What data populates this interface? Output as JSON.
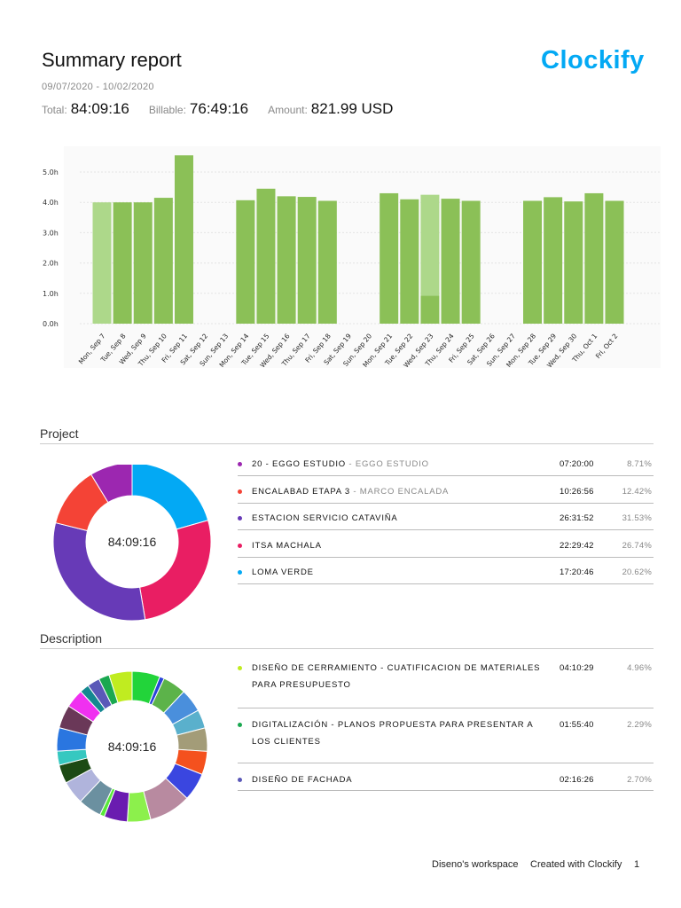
{
  "header": {
    "title": "Summary report",
    "logo": "Clockify",
    "date_range": "09/07/2020 - 10/02/2020",
    "total_label": "Total:",
    "total_value": "84:09:16",
    "billable_label": "Billable:",
    "billable_value": "76:49:16",
    "amount_label": "Amount:",
    "amount_value": "821.99 USD",
    "brand_color": "#03a9f4"
  },
  "chart_data": [
    {
      "type": "bar",
      "stacked": true,
      "categories": [
        "Mon, Sep 7",
        "Tue, Sep 8",
        "Wed, Sep 9",
        "Thu, Sep 10",
        "Fri, Sep 11",
        "Sat, Sep 12",
        "Sun, Sep 13",
        "Mon, Sep 14",
        "Tue, Sep 15",
        "Wed, Sep 16",
        "Thu, Sep 17",
        "Fri, Sep 18",
        "Sat, Sep 19",
        "Sun, Sep 20",
        "Mon, Sep 21",
        "Tue, Sep 22",
        "Wed, Sep 23",
        "Thu, Sep 24",
        "Fri, Sep 25",
        "Sat, Sep 26",
        "Sun, Sep 27",
        "Mon, Sep 28",
        "Tue, Sep 29",
        "Wed, Sep 30",
        "Thu, Oct 1",
        "Fri, Oct 2"
      ],
      "series": [
        {
          "color": "#8bc057",
          "values": [
            0,
            4.0,
            4.0,
            4.15,
            5.55,
            0,
            0,
            4.07,
            4.45,
            4.2,
            4.18,
            4.05,
            0,
            0,
            4.3,
            4.1,
            0.92,
            4.12,
            4.05,
            0,
            0,
            4.05,
            4.17,
            4.03,
            4.3,
            4.05
          ]
        },
        {
          "color": "#add88a",
          "values": [
            4.0,
            0,
            0,
            0,
            0,
            0,
            0,
            0,
            0,
            0,
            0,
            0,
            0,
            0,
            0,
            0,
            3.33,
            0,
            0,
            0,
            0,
            0,
            0,
            0,
            0,
            0
          ]
        }
      ],
      "yticks": [
        "0.0h",
        "1.0h",
        "2.0h",
        "3.0h",
        "4.0h",
        "5.0h"
      ],
      "ylim": [
        0,
        5.7
      ],
      "grid": true
    },
    {
      "type": "pie",
      "center_label": "84:09:16",
      "slices": [
        {
          "label": "LOMA VERDE",
          "value": 20.62,
          "color": "#03a9f4"
        },
        {
          "label": "ITSA MACHALA",
          "value": 26.74,
          "color": "#e91e63"
        },
        {
          "label": "ESTACION SERVICIO CATAVIÑA",
          "value": 31.53,
          "color": "#673ab7"
        },
        {
          "label": "ENCALABAD ETAPA 3",
          "value": 12.42,
          "color": "#f44336"
        },
        {
          "label": "20 - EGGO ESTUDIO",
          "value": 8.71,
          "color": "#9c27b0"
        }
      ]
    },
    {
      "type": "pie",
      "center_label": "84:09:16",
      "slices": [
        {
          "value": 6,
          "color": "#22d43a"
        },
        {
          "value": 1,
          "color": "#2a44d8"
        },
        {
          "value": 5,
          "color": "#5cb34a"
        },
        {
          "value": 5,
          "color": "#4a8fdc"
        },
        {
          "value": 4,
          "color": "#5ab0cc"
        },
        {
          "value": 5,
          "color": "#a39c78"
        },
        {
          "value": 5,
          "color": "#f4511e"
        },
        {
          "value": 6,
          "color": "#3a46e0"
        },
        {
          "value": 9,
          "color": "#b88aa0"
        },
        {
          "value": 5,
          "color": "#8cf04c"
        },
        {
          "value": 5,
          "color": "#6a1cb0"
        },
        {
          "value": 1,
          "color": "#58e83a"
        },
        {
          "value": 5,
          "color": "#6b90a0"
        },
        {
          "value": 5,
          "color": "#b0b4dc"
        },
        {
          "value": 4,
          "color": "#1c4a14"
        },
        {
          "value": 3,
          "color": "#36c8c0"
        },
        {
          "value": 5,
          "color": "#2a76e0"
        },
        {
          "value": 5,
          "color": "#6a3858"
        },
        {
          "value": 4,
          "color": "#f030f0"
        },
        {
          "value": 2,
          "color": "#148890"
        },
        {
          "value": 2.7,
          "color": "#5a58b8"
        },
        {
          "value": 2.29,
          "color": "#1aa850"
        },
        {
          "value": 4.96,
          "color": "#c0ec20"
        }
      ]
    }
  ],
  "project": {
    "heading": "Project",
    "items": [
      {
        "name": "20 - EGGO ESTUDIO",
        "client": " - EGGO ESTUDIO",
        "time": "07:20:00",
        "pct": "8.71%",
        "color": "#9c27b0"
      },
      {
        "name": "ENCALABAD ETAPA 3",
        "client": " - MARCO ENCALADA",
        "time": "10:26:56",
        "pct": "12.42%",
        "color": "#f44336"
      },
      {
        "name": "ESTACION SERVICIO CATAVIÑA",
        "client": "",
        "time": "26:31:52",
        "pct": "31.53%",
        "color": "#673ab7"
      },
      {
        "name": "ITSA MACHALA",
        "client": "",
        "time": "22:29:42",
        "pct": "26.74%",
        "color": "#e91e63"
      },
      {
        "name": "LOMA VERDE",
        "client": "",
        "time": "17:20:46",
        "pct": "20.62%",
        "color": "#03a9f4"
      }
    ]
  },
  "description": {
    "heading": "Description",
    "items": [
      {
        "name": "DISEÑO DE CERRAMIENTO - CUATIFICACION DE MATERIALES PARA PRESUPUESTO",
        "time": "04:10:29",
        "pct": "4.96%",
        "color": "#c0ec20"
      },
      {
        "name": "DIGITALIZACIÓN - PLANOS PROPUESTA PARA PRESENTAR A LOS CLIENTES",
        "time": "01:55:40",
        "pct": "2.29%",
        "color": "#1aa850"
      },
      {
        "name": "DISEÑO DE FACHADA",
        "time": "02:16:26",
        "pct": "2.70%",
        "color": "#5a58b8"
      }
    ]
  },
  "footer": {
    "workspace": "Diseno's workspace",
    "created": "Created with Clockify",
    "page": "1"
  }
}
